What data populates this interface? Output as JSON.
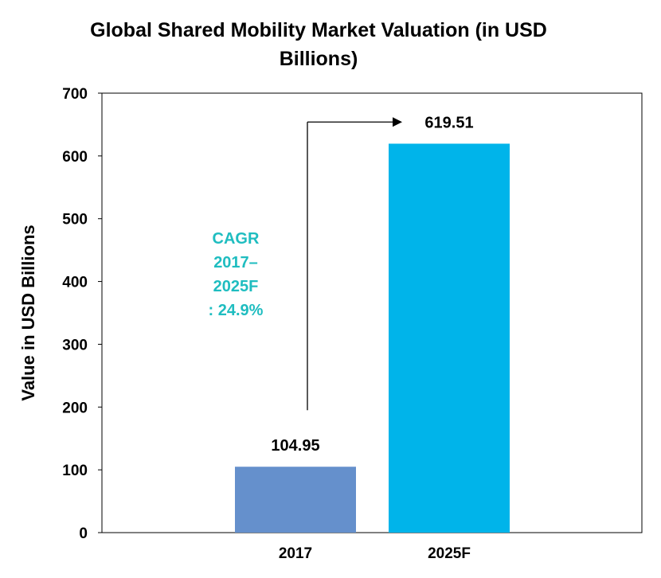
{
  "chart_data": {
    "type": "bar",
    "title": "Global Shared Mobility Market Valuation (in USD Billions)",
    "xlabel": "",
    "ylabel": "Value in USD Billions",
    "categories": [
      "2017",
      "2025F"
    ],
    "values": [
      104.95,
      619.51
    ],
    "data_labels": [
      "104.95",
      "619.51"
    ],
    "ylim": [
      0,
      700
    ],
    "yticks": [
      0,
      100,
      200,
      300,
      400,
      500,
      600,
      700
    ],
    "grid": false,
    "legend": "none",
    "bar_colors": [
      "#6590cc",
      "#00b4ea"
    ],
    "annotation": {
      "lines": [
        "CAGR",
        "2017–",
        "2025F",
        ": 24.9%"
      ],
      "color": "#1fbdc0"
    }
  }
}
